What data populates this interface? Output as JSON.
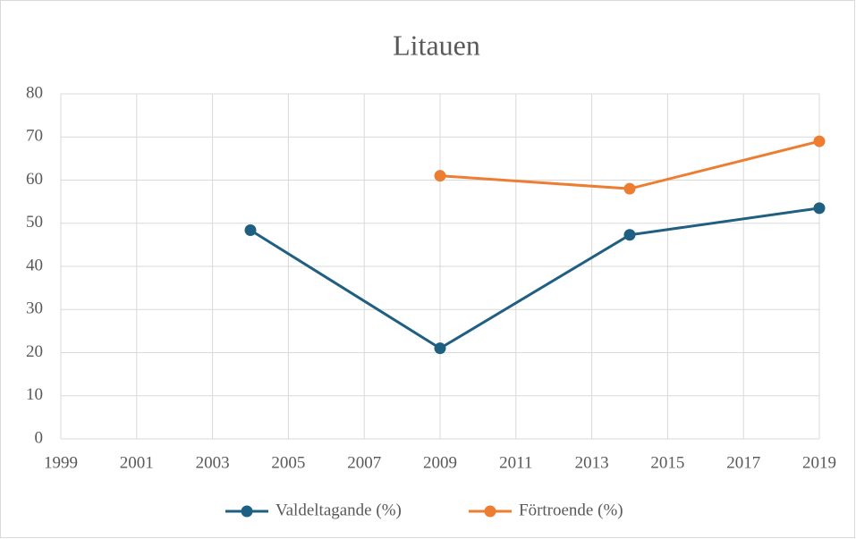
{
  "chart_data": {
    "type": "line",
    "title": "Litauen",
    "x": [
      2004,
      2009,
      2014,
      2019
    ],
    "series": [
      {
        "name": "Valdeltagande (%)",
        "color": "#1f5f82",
        "values": [
          48.4,
          21,
          47.3,
          53.5
        ]
      },
      {
        "name": "Förtroende (%)",
        "color": "#ed7d31",
        "values": [
          null,
          61,
          58,
          69
        ]
      }
    ],
    "xlim": [
      1999,
      2019
    ],
    "xticks": [
      1999,
      2001,
      2003,
      2005,
      2007,
      2009,
      2011,
      2013,
      2015,
      2017,
      2019
    ],
    "ylim": [
      0,
      80
    ],
    "yticks": [
      0,
      10,
      20,
      30,
      40,
      50,
      60,
      70,
      80
    ],
    "grid": true,
    "legend": "bottom"
  }
}
